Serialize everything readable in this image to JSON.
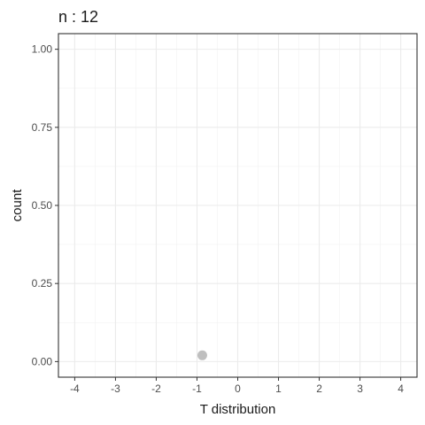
{
  "chart_data": {
    "type": "scatter",
    "title": "n : 12",
    "xlabel": "T distribution",
    "ylabel": "count",
    "xlim": [
      -4.4,
      4.4
    ],
    "ylim": [
      -0.05,
      1.05
    ],
    "x_ticks": [
      -4,
      -3,
      -2,
      -1,
      0,
      1,
      2,
      3,
      4
    ],
    "x_tick_labels": [
      "-4",
      "-3",
      "-2",
      "-1",
      "0",
      "1",
      "2",
      "3",
      "4"
    ],
    "y_ticks": [
      0,
      0.25,
      0.5,
      0.75,
      1
    ],
    "y_tick_labels": [
      "0.00",
      "0.25",
      "0.50",
      "0.75",
      "1.00"
    ],
    "grid": true,
    "legend": "none",
    "point_color": "#bfbfbf",
    "points": [
      {
        "x": -0.87,
        "y": 0.02
      }
    ]
  }
}
